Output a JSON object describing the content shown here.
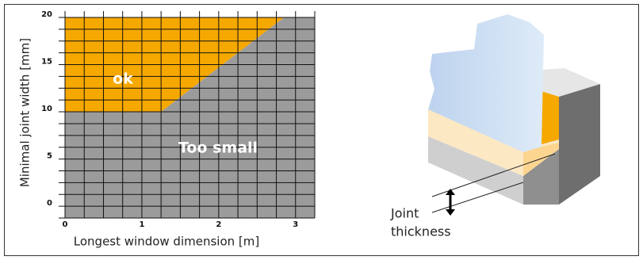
{
  "chart_data": {
    "type": "region",
    "x_label": "Longest window dimension [m]",
    "y_label": "Minimal joint width [mm]",
    "xlim": [
      0,
      3.25
    ],
    "ylim": [
      -1.25,
      20
    ],
    "xticks": [
      0,
      1,
      2,
      3
    ],
    "yticks": [
      0,
      5,
      10,
      15,
      20
    ],
    "minor_xticks": [
      0.25,
      0.5,
      0.75,
      1.25,
      1.5,
      1.75,
      2.25,
      2.5,
      2.75,
      3.25
    ],
    "minor_yticks": [
      -1.25,
      1.25,
      2.5,
      3.75,
      6.25,
      7.5,
      8.75,
      11.25,
      12.5,
      13.75,
      16.25,
      17.5,
      18.75
    ],
    "grid": true,
    "boundary": {
      "x": [
        0,
        1.25,
        2.85
      ],
      "y": [
        10,
        10,
        20
      ]
    },
    "regions": [
      {
        "name": "ok",
        "color": "#f5a800",
        "side": "above"
      },
      {
        "name": "Too small",
        "color": "#9b9b9b",
        "side": "below"
      }
    ]
  },
  "diagram": {
    "label_lines": [
      "Joint",
      "thickness"
    ]
  }
}
